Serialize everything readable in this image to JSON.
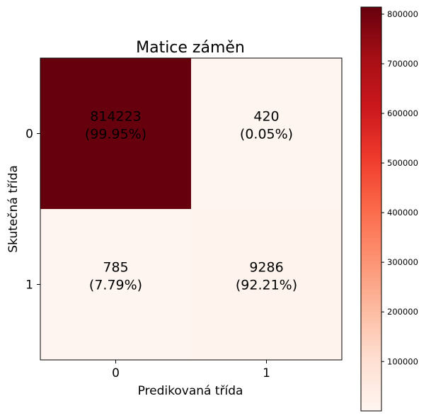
{
  "chart_data": {
    "type": "heatmap",
    "title": "Matice záměn",
    "xlabel": "Predikovaná třída",
    "ylabel": "Skutečná třída",
    "x_categories": [
      "0",
      "1"
    ],
    "y_categories": [
      "0",
      "1"
    ],
    "values": [
      [
        814223,
        420
      ],
      [
        785,
        9286
      ]
    ],
    "cell_labels": [
      [
        "814223\n(99.95%)",
        "420\n(0.05%)"
      ],
      [
        "785\n(7.79%)",
        "9286\n(92.21%)"
      ]
    ],
    "colormap": "Reds",
    "colorbar": {
      "range": [
        420,
        814223
      ],
      "ticks": [
        100000,
        200000,
        300000,
        400000,
        500000,
        600000,
        700000,
        800000
      ],
      "tick_labels": [
        "100000",
        "200000",
        "300000",
        "400000",
        "500000",
        "600000",
        "700000",
        "800000"
      ]
    }
  }
}
